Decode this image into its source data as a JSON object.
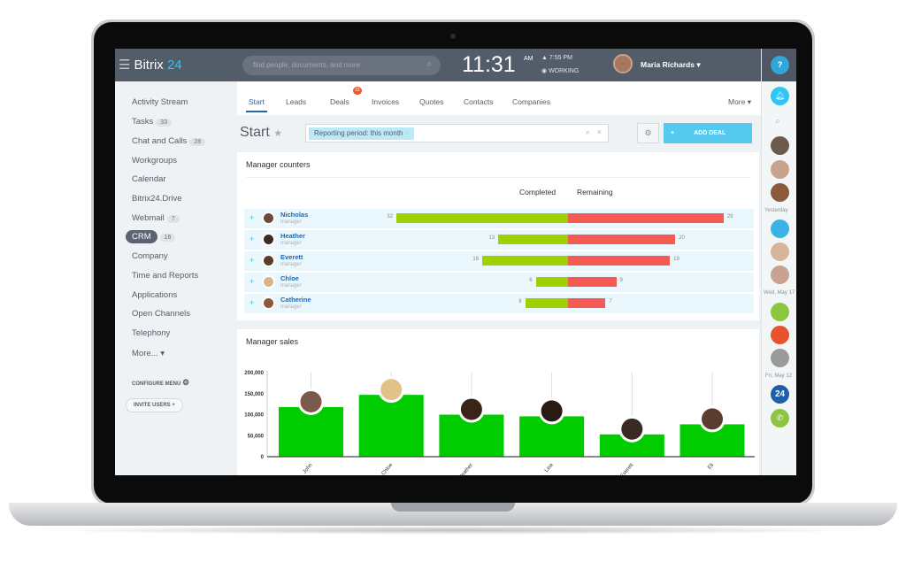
{
  "header": {
    "logo_text": "Bitrix",
    "logo_num": "24",
    "search_placeholder": "find people, documents, and more",
    "time": "11:31",
    "ampm": "AM",
    "alarm": "7:55 PM",
    "status": "WORKING",
    "user_name": "Maria Richards",
    "help": "?"
  },
  "sidebar": {
    "items": [
      {
        "label": "Activity Stream"
      },
      {
        "label": "Tasks",
        "count": "33"
      },
      {
        "label": "Chat and Calls",
        "count": "28"
      },
      {
        "label": "Workgroups"
      },
      {
        "label": "Calendar"
      },
      {
        "label": "Bitrix24.Drive"
      },
      {
        "label": "Webmail",
        "count": "7"
      },
      {
        "label": "CRM",
        "count": "16"
      },
      {
        "label": "Company"
      },
      {
        "label": "Time and Reports"
      },
      {
        "label": "Applications"
      },
      {
        "label": "Open Channels"
      },
      {
        "label": "Telephony"
      },
      {
        "label": "More... ▾"
      }
    ],
    "configure": "CONFIGURE MENU",
    "invite": "INVITE USERS"
  },
  "tabs": [
    {
      "label": "Start"
    },
    {
      "label": "Leads"
    },
    {
      "label": "Deals",
      "badge": "15"
    },
    {
      "label": "Invoices"
    },
    {
      "label": "Quotes"
    },
    {
      "label": "Contacts"
    },
    {
      "label": "Companies"
    }
  ],
  "tabs_more": "More ▾",
  "page": {
    "title": "Start",
    "filter": "Reporting period: this month",
    "add_deal": "ADD DEAL"
  },
  "counters": {
    "title": "Manager counters",
    "col_completed": "Completed",
    "col_remaining": "Remaining",
    "rows": [
      {
        "name": "Nicholas",
        "role": "manager",
        "completed": 32,
        "remaining": 29
      },
      {
        "name": "Heather",
        "role": "manager",
        "completed": 13,
        "remaining": 20
      },
      {
        "name": "Everett",
        "role": "manager",
        "completed": 16,
        "remaining": 19
      },
      {
        "name": "Chloe",
        "role": "manager",
        "completed": 6,
        "remaining": 9
      },
      {
        "name": "Catherine",
        "role": "manager",
        "completed": 8,
        "remaining": 7
      }
    ],
    "colors": {
      "completed": "#9dd100",
      "remaining": "#f55b55"
    }
  },
  "chart_data": {
    "type": "bar",
    "title": "Manager sales",
    "categories": [
      "John",
      "Chloe",
      "Heather",
      "Lisa",
      "Everett",
      "Eli"
    ],
    "values": [
      118000,
      147000,
      100000,
      96000,
      53000,
      77000
    ],
    "ylim": [
      0,
      200000
    ],
    "yticks": [
      "0",
      "50,000",
      "100,000",
      "150,000",
      "200,000"
    ],
    "color": "#00cc00"
  },
  "right_bar": {
    "labels": [
      "Yesterday",
      "Wed, May 17",
      "Fri, May 12"
    ],
    "b24": "24"
  }
}
